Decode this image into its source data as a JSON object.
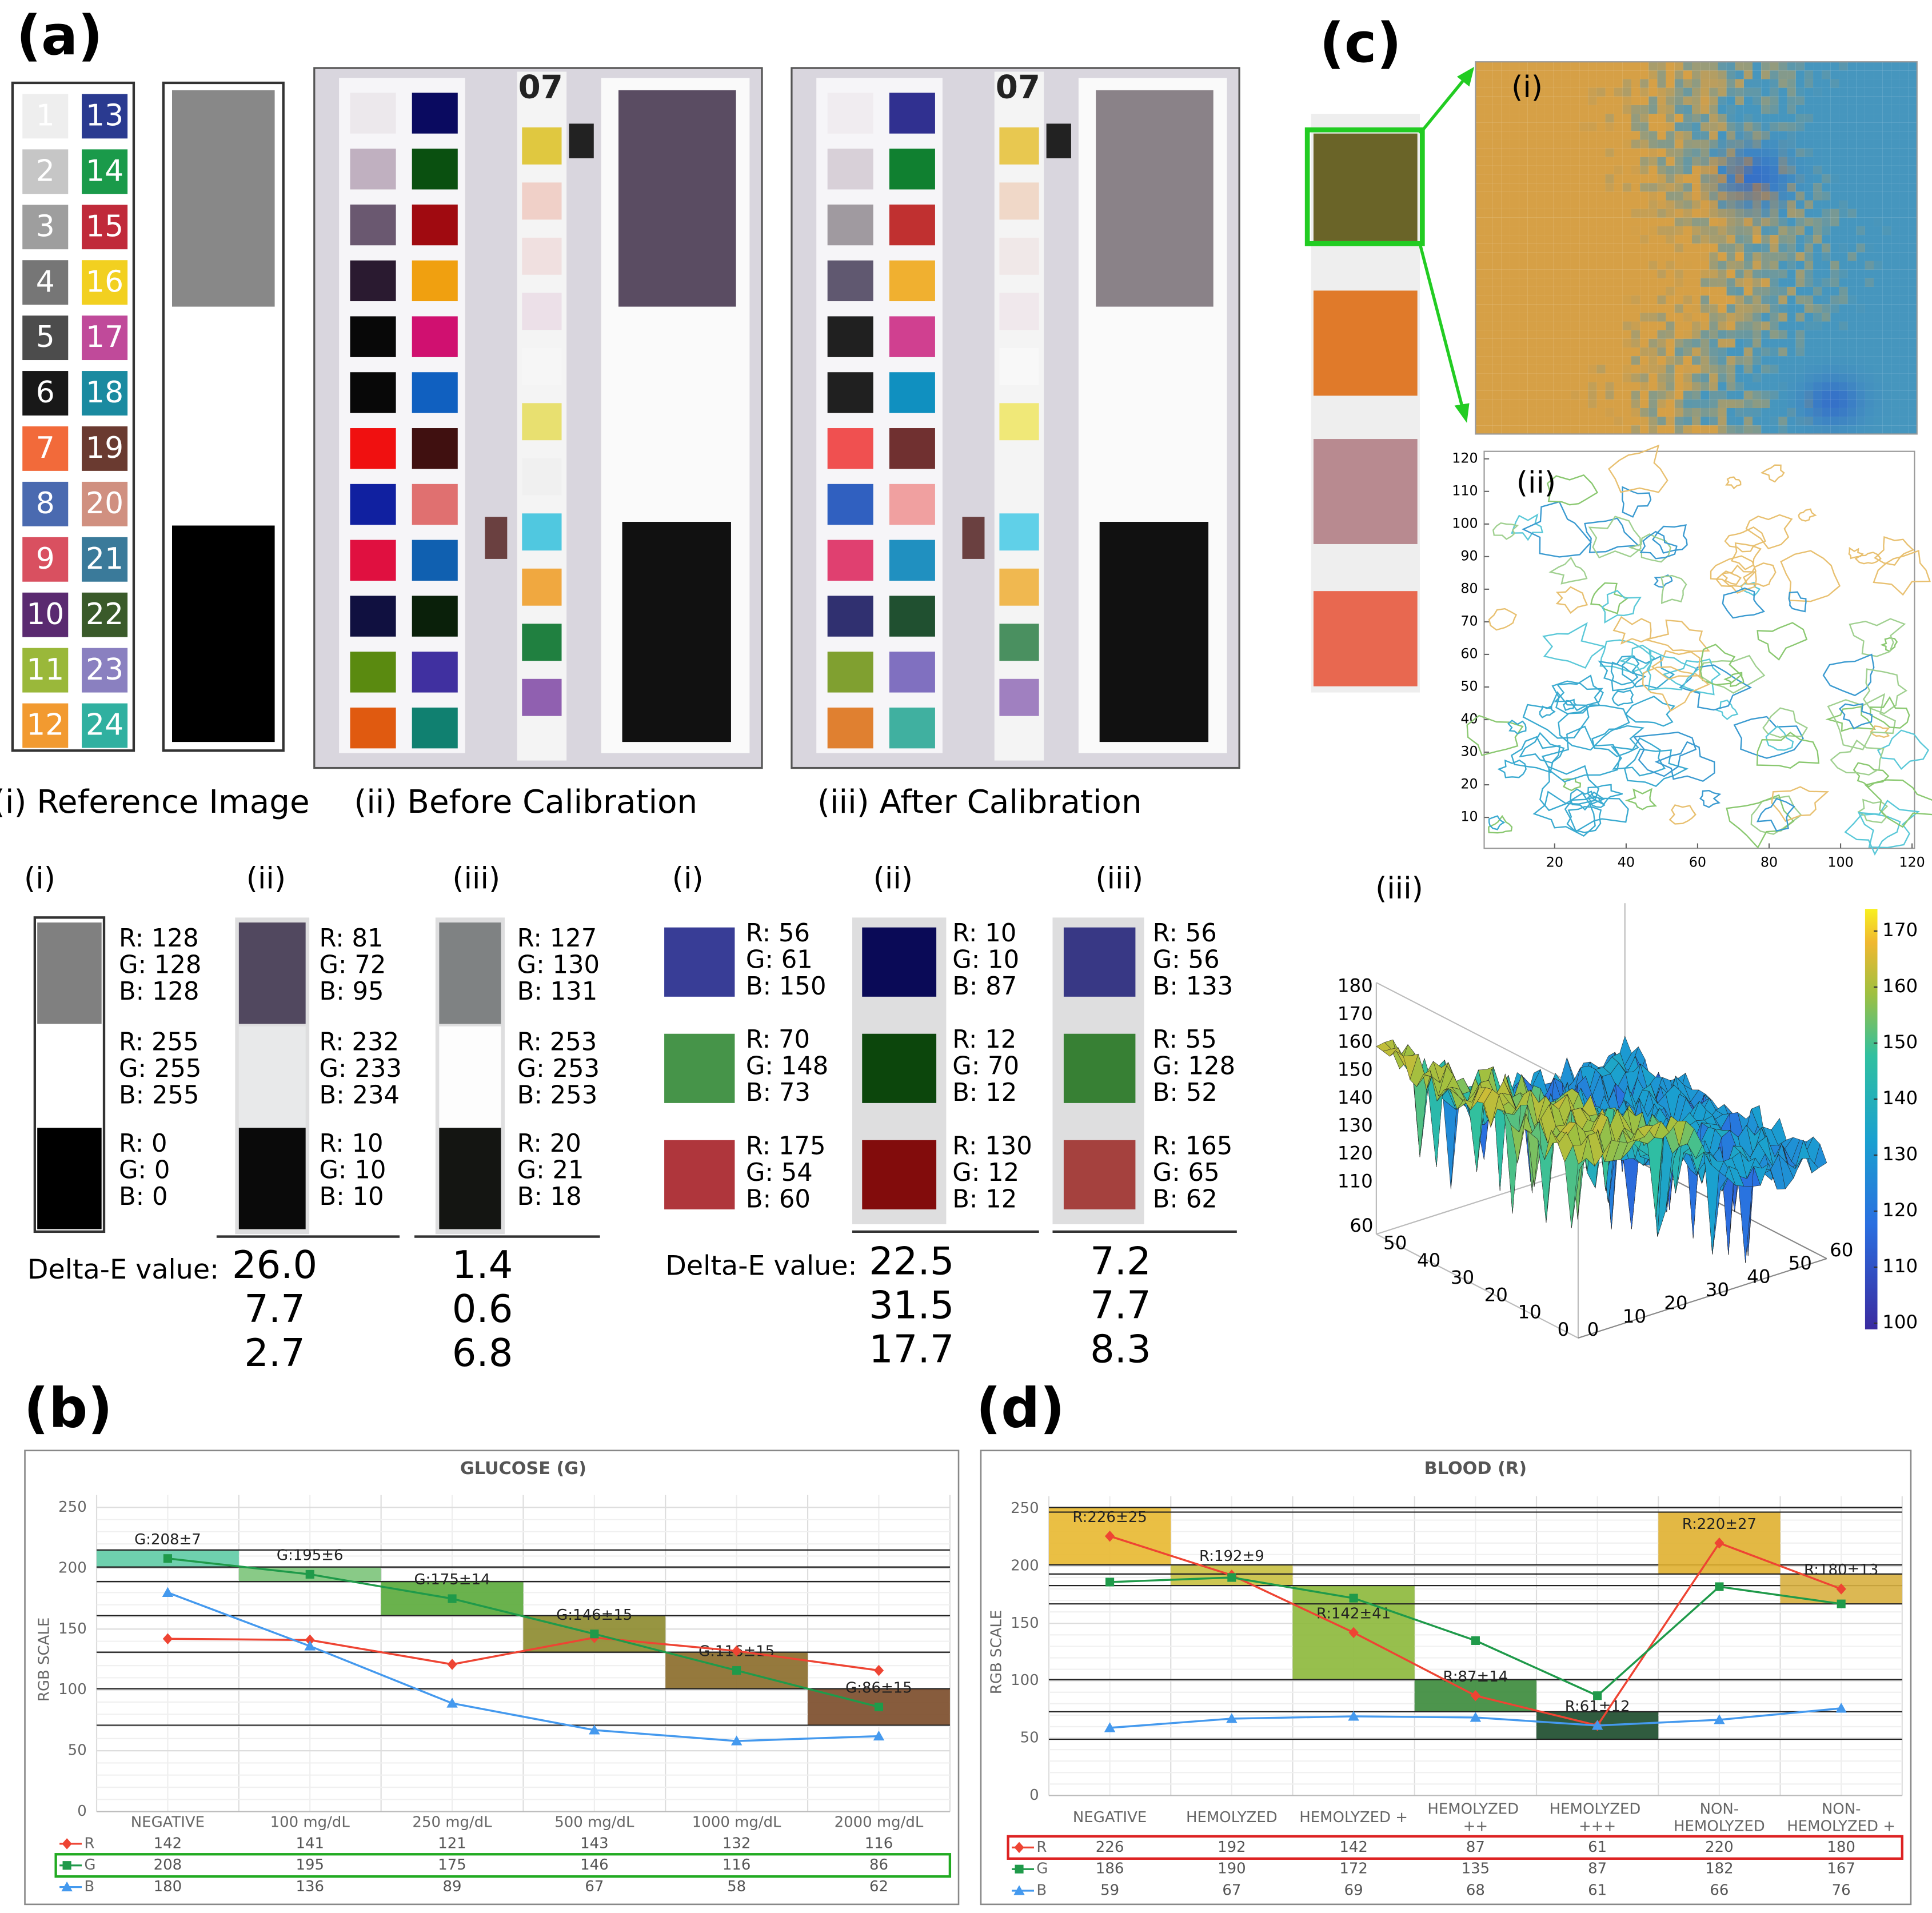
{
  "figure": {
    "panel_labels": [
      "(a)",
      "(b)",
      "(c)",
      "(d)"
    ],
    "reference": {
      "caption": "(i) Reference Image",
      "patches": [
        {
          "label": "1",
          "color": "#eeeeee"
        },
        {
          "label": "2",
          "color": "#c6c6c6"
        },
        {
          "label": "3",
          "color": "#9e9e9e"
        },
        {
          "label": "4",
          "color": "#767676"
        },
        {
          "label": "5",
          "color": "#4c4c4c"
        },
        {
          "label": "6",
          "color": "#181818"
        },
        {
          "label": "7",
          "color": "#f26a3a"
        },
        {
          "label": "8",
          "color": "#4a6ab0"
        },
        {
          "label": "9",
          "color": "#d95060"
        },
        {
          "label": "10",
          "color": "#5a2a70"
        },
        {
          "label": "11",
          "color": "#9ab83a"
        },
        {
          "label": "12",
          "color": "#f29a30"
        },
        {
          "label": "13",
          "color": "#2a3a90"
        },
        {
          "label": "14",
          "color": "#1a9a4a"
        },
        {
          "label": "15",
          "color": "#c02a3a"
        },
        {
          "label": "16",
          "color": "#f2d020"
        },
        {
          "label": "17",
          "color": "#c04a9a"
        },
        {
          "label": "18",
          "color": "#1a8aa0"
        },
        {
          "label": "19",
          "color": "#6a3a30"
        },
        {
          "label": "20",
          "color": "#d09080"
        },
        {
          "label": "21",
          "color": "#3a7a9a"
        },
        {
          "label": "22",
          "color": "#3a5a2a"
        },
        {
          "label": "23",
          "color": "#8a80c0"
        },
        {
          "label": "24",
          "color": "#30b0a0"
        }
      ]
    },
    "before": {
      "caption": "(ii) Before Calibration",
      "strip_label": "07",
      "upper_color": "#5a4c62",
      "patch_colors": [
        "#ece8ec",
        "#c0b0c0",
        "#6a5870",
        "#2a1a30",
        "#080808",
        "#080808",
        "#f01010",
        "#1020a0",
        "#e01040",
        "#101040",
        "#5a8a10",
        "#e05a10",
        "#0a0a60",
        "#0a5010",
        "#a00a10",
        "#f0a010",
        "#d01070",
        "#1060c0",
        "#401010",
        "#e07070",
        "#1060b0",
        "#0a200a",
        "#4030a0",
        "#108070"
      ],
      "pad_colors": [
        "#e0c840",
        "#f0d0c8",
        "#f0e0e0",
        "#ece0e8",
        "#f6f6f6",
        "#e8e070",
        "#f0f0f0",
        "#50c8e0",
        "#f0a840",
        "#208040",
        "#9060b0"
      ]
    },
    "after": {
      "caption": "(iii) After Calibration",
      "strip_label": "07",
      "upper_color": "#8a8288",
      "patch_colors": [
        "#f0ecf0",
        "#d8d0d8",
        "#a09aa0",
        "#605870",
        "#202020",
        "#202020",
        "#f05050",
        "#3060c0",
        "#e04070",
        "#303070",
        "#80a030",
        "#e08030",
        "#303090",
        "#108030",
        "#c03030",
        "#f0b030",
        "#d04090",
        "#1090c0",
        "#703030",
        "#f0a0a0",
        "#2090c0",
        "#205030",
        "#8070c0",
        "#40b0a0"
      ],
      "pad_colors": [
        "#e8c850",
        "#f0d8c8",
        "#f0e8e8",
        "#f0e8ec",
        "#f8f8f8",
        "#f0e878",
        "#f4f4f4",
        "#60d0e8",
        "#f0b850",
        "#4a9060",
        "#a080c0"
      ]
    },
    "gray_comparison": {
      "columns": [
        {
          "header": "(i)",
          "patches": [
            {
              "color": "#808080",
              "rgb": [
                "R: 128",
                "G: 128",
                "B: 128"
              ]
            },
            {
              "color": "#ffffff",
              "rgb": [
                "R: 255",
                "G: 255",
                "B: 255"
              ]
            },
            {
              "color": "#000000",
              "rgb": [
                "R: 0",
                "G: 0",
                "B: 0"
              ]
            }
          ]
        },
        {
          "header": "(ii)",
          "patches": [
            {
              "color": "#51485f",
              "rgb": [
                "R: 81",
                "G: 72",
                "B: 95"
              ]
            },
            {
              "color": "#e8e9ea",
              "rgb": [
                "R: 232",
                "G: 233",
                "B: 234"
              ]
            },
            {
              "color": "#0a0a0a",
              "rgb": [
                "R: 10",
                "G: 10",
                "B: 10"
              ]
            }
          ]
        },
        {
          "header": "(iii)",
          "patches": [
            {
              "color": "#7f8283",
              "rgb": [
                "R: 127",
                "G: 130",
                "B: 131"
              ]
            },
            {
              "color": "#fdfdfd",
              "rgb": [
                "R: 253",
                "G: 253",
                "B: 253"
              ]
            },
            {
              "color": "#141512",
              "rgb": [
                "R: 20",
                "G: 21",
                "B: 18"
              ]
            }
          ]
        }
      ],
      "delta_e_label": "Delta-E value:",
      "delta_e": [
        [
          "26.0",
          "7.7",
          "2.7"
        ],
        [
          "1.4",
          "0.6",
          "6.8"
        ]
      ]
    },
    "color_comparison": {
      "columns": [
        {
          "header": "(i)",
          "patches": [
            {
              "color": "#383d96",
              "rgb": [
                "R: 56",
                "G: 61",
                "B: 150"
              ]
            },
            {
              "color": "#469449",
              "rgb": [
                "R: 70",
                "G: 148",
                "B: 73"
              ]
            },
            {
              "color": "#af363c",
              "rgb": [
                "R: 175",
                "G: 54",
                "B: 60"
              ]
            }
          ]
        },
        {
          "header": "(ii)",
          "patches": [
            {
              "color": "#0a0a57",
              "rgb": [
                "R: 10",
                "G: 10",
                "B: 87"
              ]
            },
            {
              "color": "#0c460c",
              "rgb": [
                "R: 12",
                "G: 70",
                "B: 12"
              ]
            },
            {
              "color": "#820c0c",
              "rgb": [
                "R: 130",
                "G: 12",
                "B: 12"
              ]
            }
          ]
        },
        {
          "header": "(iii)",
          "patches": [
            {
              "color": "#383885",
              "rgb": [
                "R: 56",
                "G: 56",
                "B: 133"
              ]
            },
            {
              "color": "#378034",
              "rgb": [
                "R: 55",
                "G: 128",
                "B: 52"
              ]
            },
            {
              "color": "#a5413e",
              "rgb": [
                "R: 165",
                "G: 65",
                "B: 62"
              ]
            }
          ]
        }
      ],
      "delta_e_label": "Delta-E value:",
      "delta_e": [
        [
          "22.5",
          "31.5",
          "17.7"
        ],
        [
          "7.2",
          "7.7",
          "8.3"
        ]
      ]
    },
    "strip_map": {
      "heatmap_label": "(i)",
      "contour_label": "(ii)",
      "surface_label": "(iii)",
      "contour_yticks": [
        10,
        20,
        30,
        40,
        50,
        60,
        70,
        80,
        90,
        100,
        110,
        120
      ],
      "contour_xticks": [
        20,
        40,
        60,
        80,
        100,
        120
      ],
      "surface_zticks": [
        110,
        120,
        130,
        140,
        150,
        160,
        170,
        180
      ],
      "surface_depth_ticks": [
        0,
        10,
        20,
        30,
        40,
        50,
        60
      ],
      "surface_xticks": [
        0,
        10,
        20,
        30,
        40,
        50,
        60
      ],
      "colorbar_ticks": [
        100,
        110,
        120,
        130,
        140,
        150,
        160,
        170
      ]
    }
  },
  "chart_data": [
    {
      "type": "line",
      "title": "GLUCOSE (G)",
      "y_label": "RGB SCALE",
      "categories": [
        "NEGATIVE",
        "100 mg/dL",
        "250 mg/dL",
        "500 mg/dL",
        "1000 mg/dL",
        "2000 mg/dL"
      ],
      "series": [
        {
          "name": "R",
          "color": "#ee4433",
          "marker": "diamond",
          "values": [
            142,
            141,
            121,
            143,
            132,
            116
          ]
        },
        {
          "name": "G",
          "color": "#1f9a4a",
          "marker": "square",
          "values": [
            208,
            195,
            175,
            146,
            116,
            86
          ]
        },
        {
          "name": "B",
          "color": "#4499ee",
          "marker": "triangle",
          "values": [
            180,
            136,
            89,
            67,
            58,
            62
          ]
        }
      ],
      "bands": [
        {
          "label": "G:208±7",
          "mean": 208,
          "sd": 7,
          "color": "#5fcba5"
        },
        {
          "label": "G:195±6",
          "mean": 195,
          "sd": 6,
          "color": "#7cc47a"
        },
        {
          "label": "G:175±14",
          "mean": 175,
          "sd": 14,
          "color": "#5aaa3a"
        },
        {
          "label": "G:146±15",
          "mean": 146,
          "sd": 15,
          "color": "#8c8a2c"
        },
        {
          "label": "G:116±15",
          "mean": 116,
          "sd": 15,
          "color": "#8a6a28"
        },
        {
          "label": "G:86±15",
          "mean": 86,
          "sd": 15,
          "color": "#7a4a28"
        }
      ],
      "ylim": [
        0,
        250
      ],
      "yticks": [
        0,
        50,
        100,
        150,
        200,
        250
      ],
      "grid": true,
      "highlight_series": "G",
      "highlight_color": "#22aa22"
    },
    {
      "type": "line",
      "title": "BLOOD (R)",
      "y_label": "RGB SCALE",
      "categories": [
        "NEGATIVE",
        "HEMOLYZED",
        "HEMOLYZED +",
        "HEMOLYZED ++",
        "HEMOLYZED +++",
        "NON-HEMOLYZED",
        "NON-HEMOLYZED +"
      ],
      "series": [
        {
          "name": "R",
          "color": "#ee4433",
          "marker": "diamond",
          "values": [
            226,
            192,
            142,
            87,
            61,
            220,
            180
          ]
        },
        {
          "name": "G",
          "color": "#1f9a4a",
          "marker": "square",
          "values": [
            186,
            190,
            172,
            135,
            87,
            182,
            167
          ]
        },
        {
          "name": "B",
          "color": "#4499ee",
          "marker": "triangle",
          "values": [
            59,
            67,
            69,
            68,
            61,
            66,
            76
          ]
        }
      ],
      "bands": [
        {
          "label": "R:226±25",
          "mean": 226,
          "sd": 25,
          "color": "#e8b830"
        },
        {
          "label": "R:192±9",
          "mean": 192,
          "sd": 9,
          "color": "#c8c040"
        },
        {
          "label": "R:142±41",
          "mean": 142,
          "sd": 41,
          "color": "#8cb83a"
        },
        {
          "label": "R:87±14",
          "mean": 87,
          "sd": 14,
          "color": "#3a8a3a"
        },
        {
          "label": "R:61±12",
          "mean": 61,
          "sd": 12,
          "color": "#1a4a2a"
        },
        {
          "label": "R:220±27",
          "mean": 220,
          "sd": 27,
          "color": "#e0b030"
        },
        {
          "label": "R:180±13",
          "mean": 180,
          "sd": 13,
          "color": "#d8b040"
        }
      ],
      "ylim": [
        0,
        250
      ],
      "yticks": [
        0,
        50,
        100,
        150,
        200,
        250
      ],
      "grid": true,
      "highlight_series": "R",
      "highlight_color": "#dd2222"
    }
  ]
}
